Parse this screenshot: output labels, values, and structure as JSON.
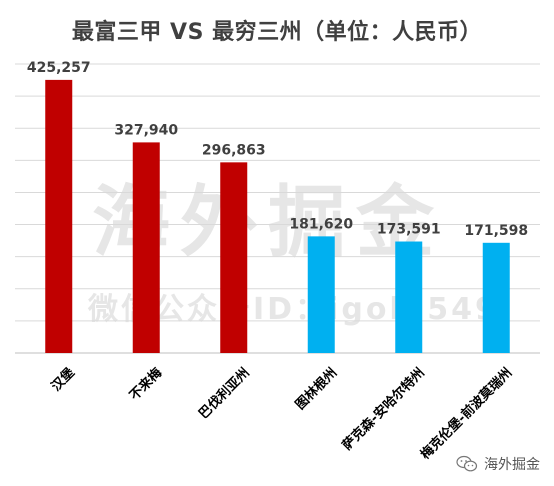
{
  "chart_data": {
    "type": "bar",
    "title": "最富三甲 VS 最穷三州（单位：人民币）",
    "categories": [
      "汉堡",
      "不来梅",
      "巴伐利亚州",
      "图林根州",
      "萨克森-安哈尔特州",
      "梅克伦堡-前波莫瑞州"
    ],
    "values": [
      425257,
      327940,
      296863,
      181620,
      173591,
      171598
    ],
    "value_labels": [
      "425,257",
      "327,940",
      "296,863",
      "181,620",
      "173,591",
      "171,598"
    ],
    "bar_colors": [
      "#c00000",
      "#c00000",
      "#c00000",
      "#00b0f0",
      "#00b0f0",
      "#00b0f0"
    ],
    "ylim": [
      0,
      450000
    ],
    "grid": true,
    "gridline_step": 50000
  },
  "watermark": {
    "main": "海外掘金",
    "sub": "微信公众号ID：igold549"
  },
  "footer": {
    "brand": "海外掘金",
    "icon": "wechat-icon"
  },
  "colors": {
    "grid": "#d9d9d9",
    "axis": "#bfbfbf",
    "label": "#404040"
  }
}
